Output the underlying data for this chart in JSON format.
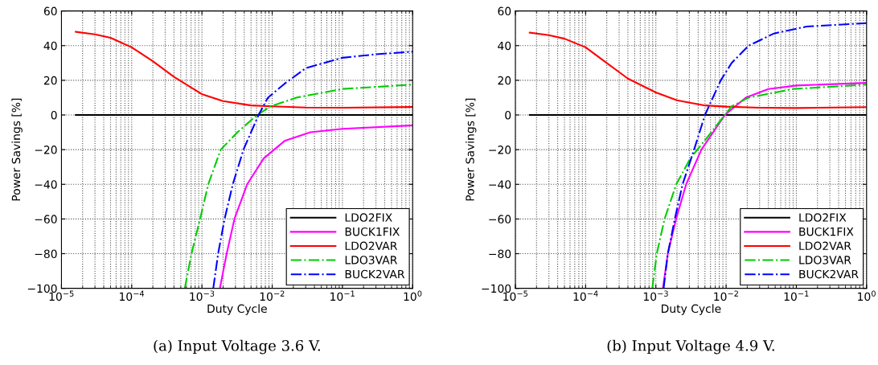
{
  "chart_data": [
    {
      "type": "line",
      "xlabel": "Duty Cycle",
      "ylabel": "Power Savings [%]",
      "log": "x",
      "grid": true,
      "legend": "bottom right",
      "xlim": [
        1e-05,
        1
      ],
      "ylim": [
        -100,
        60
      ],
      "xticks": [
        {
          "value": 1e-05,
          "label": "10$^{−5}$"
        },
        {
          "value": 0.0001,
          "label": "10$^{−4}$"
        },
        {
          "value": 0.001,
          "label": "10$^{−3}$"
        },
        {
          "value": 0.01,
          "label": "10$^{−2}$"
        },
        {
          "value": 0.1,
          "label": "10$^{−1}$"
        },
        {
          "value": 1,
          "label": "10$^{0}$"
        }
      ],
      "yticks": [
        -100,
        -80,
        -60,
        -40,
        -20,
        0,
        20,
        40,
        60
      ],
      "annotations": [
        "(a) Input Voltage 3.6 V."
      ],
      "series": [
        {
          "name": "LDO2FIX",
          "color": "#000000",
          "line_style": "solid",
          "x": [
            1.6e-05,
            1
          ],
          "values": [
            0,
            0
          ]
        },
        {
          "name": "BUCK1FIX",
          "color": "#ff00ff",
          "line_style": "solid",
          "x": [
            0.0018,
            0.00225,
            0.0029,
            0.0044,
            0.0076,
            0.015,
            0.035,
            0.1,
            1
          ],
          "values": [
            -100,
            -80,
            -60,
            -40,
            -25,
            -15,
            -10,
            -8,
            -6
          ]
        },
        {
          "name": "LDO2VAR",
          "color": "#ff0000",
          "line_style": "solid",
          "x": [
            1.6e-05,
            3e-05,
            5e-05,
            0.0001,
            0.0002,
            0.0004,
            0.001,
            0.002,
            0.005,
            0.01,
            0.03,
            0.1,
            1
          ],
          "values": [
            48,
            46.5,
            44.5,
            39,
            31,
            22,
            12,
            8,
            5.5,
            5,
            4.3,
            4.2,
            4.6
          ]
        },
        {
          "name": "LDO3VAR",
          "color": "#00cc00",
          "line_style": "dashdot",
          "x": [
            0.00057,
            0.00071,
            0.00094,
            0.00123,
            0.00185,
            0.0032,
            0.0061,
            0.0096,
            0.022,
            0.1,
            1
          ],
          "values": [
            -100,
            -80,
            -60,
            -40,
            -20,
            -10,
            0,
            5,
            10,
            15,
            17.5
          ]
        },
        {
          "name": "BUCK2VAR",
          "color": "#0000ff",
          "line_style": "dashdot",
          "x": [
            0.00145,
            0.0017,
            0.0021,
            0.00275,
            0.0039,
            0.0064,
            0.0087,
            0.015,
            0.03,
            0.1,
            0.3,
            1
          ],
          "values": [
            -100,
            -80,
            -60,
            -40,
            -20,
            0,
            10,
            18,
            27,
            33,
            35,
            36.5
          ]
        }
      ]
    },
    {
      "type": "line",
      "xlabel": "Duty Cycle",
      "ylabel": "Power Savings [%]",
      "log": "x",
      "grid": true,
      "legend": "bottom right",
      "xlim": [
        1e-05,
        1
      ],
      "ylim": [
        -100,
        60
      ],
      "xticks": [
        {
          "value": 1e-05,
          "label": "10$^{−5}$"
        },
        {
          "value": 0.0001,
          "label": "10$^{−4}$"
        },
        {
          "value": 0.001,
          "label": "10$^{−3}$"
        },
        {
          "value": 0.01,
          "label": "10$^{−2}$"
        },
        {
          "value": 0.1,
          "label": "10$^{−1}$"
        },
        {
          "value": 1,
          "label": "10$^{0}$"
        }
      ],
      "yticks": [
        -100,
        -80,
        -60,
        -40,
        -20,
        0,
        20,
        40,
        60
      ],
      "annotations": [
        "(b) Input Voltage 4.9 V."
      ],
      "series": [
        {
          "name": "LDO2FIX",
          "color": "#000000",
          "line_style": "solid",
          "x": [
            1.6e-05,
            1
          ],
          "values": [
            0,
            0
          ]
        },
        {
          "name": "BUCK1FIX",
          "color": "#ff00ff",
          "line_style": "solid",
          "x": [
            0.00126,
            0.00148,
            0.00194,
            0.0027,
            0.00445,
            0.0096,
            0.019,
            0.04,
            0.1,
            1
          ],
          "values": [
            -100,
            -80,
            -60,
            -40,
            -20,
            0,
            10,
            15,
            17,
            18.5
          ]
        },
        {
          "name": "LDO2VAR",
          "color": "#ff0000",
          "line_style": "solid",
          "x": [
            1.6e-05,
            3e-05,
            5e-05,
            0.0001,
            0.0002,
            0.0004,
            0.001,
            0.002,
            0.005,
            0.01,
            0.03,
            0.1,
            1
          ],
          "values": [
            47.5,
            46,
            44,
            39,
            30,
            21,
            13,
            8.5,
            5.5,
            4.8,
            4.2,
            4,
            4.5
          ]
        },
        {
          "name": "LDO3VAR",
          "color": "#00cc00",
          "line_style": "dashdot",
          "x": [
            0.00089,
            0.00103,
            0.00133,
            0.00195,
            0.0031,
            0.0049,
            0.0096,
            0.012,
            0.021,
            0.09,
            1
          ],
          "values": [
            -100,
            -80,
            -60,
            -40,
            -25,
            -15,
            0,
            5,
            10,
            15,
            17.5
          ]
        },
        {
          "name": "BUCK2VAR",
          "color": "#0000ff",
          "line_style": "dashdot",
          "x": [
            0.00129,
            0.00148,
            0.00186,
            0.0024,
            0.0035,
            0.005,
            0.0084,
            0.012,
            0.021,
            0.048,
            0.14,
            1
          ],
          "values": [
            -100,
            -80,
            -60,
            -40,
            -20,
            0,
            20,
            30,
            40,
            47,
            51,
            53
          ]
        }
      ]
    }
  ]
}
